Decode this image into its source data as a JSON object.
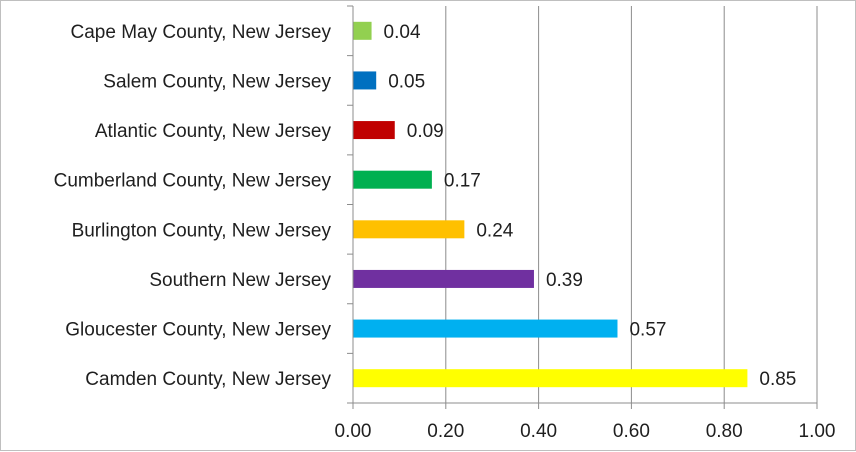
{
  "chart_data": {
    "type": "bar",
    "orientation": "horizontal",
    "categories": [
      "Camden County, New Jersey",
      "Gloucester County, New Jersey",
      "Southern New Jersey",
      "Burlington County, New Jersey",
      "Cumberland County, New Jersey",
      "Atlantic County, New Jersey",
      "Salem County, New Jersey",
      "Cape May County, New Jersey"
    ],
    "values": [
      0.85,
      0.57,
      0.39,
      0.24,
      0.17,
      0.09,
      0.05,
      0.04
    ],
    "value_labels": [
      "0.85",
      "0.57",
      "0.39",
      "0.24",
      "0.17",
      "0.09",
      "0.05",
      "0.04"
    ],
    "colors": [
      "#FFFF00",
      "#00B0F0",
      "#7030A0",
      "#FFC000",
      "#00B050",
      "#C00000",
      "#0070C0",
      "#92D050"
    ],
    "xlim": [
      0,
      1.0
    ],
    "x_ticks": [
      "0.00",
      "0.20",
      "0.40",
      "0.60",
      "0.80",
      "1.00"
    ],
    "x_tick_values": [
      0,
      0.2,
      0.4,
      0.6,
      0.8,
      1.0
    ],
    "grid": "vertical-major",
    "legend": "none",
    "title": "",
    "xlabel": "",
    "ylabel": ""
  }
}
